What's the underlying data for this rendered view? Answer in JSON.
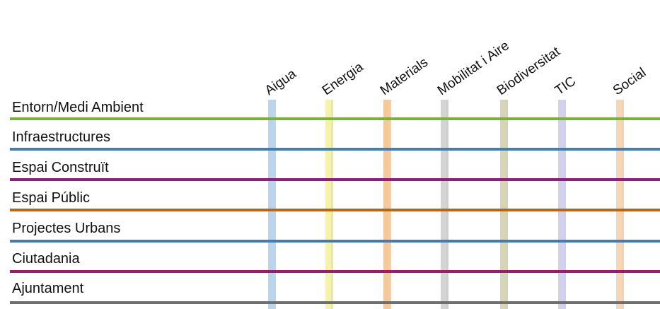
{
  "columns": [
    {
      "label": "Aigua",
      "color": "#b8d4ee",
      "shadow": "#8fb2d4"
    },
    {
      "label": "Energia",
      "color": "#f4f3a8",
      "shadow": "#d4d27e"
    },
    {
      "label": "Materials",
      "color": "#f6c99a",
      "shadow": "#dba874"
    },
    {
      "label": "Mobilitat i Aire",
      "color": "#d4d4d4",
      "shadow": "#a8a8a8"
    },
    {
      "label": "Biodiversitat",
      "color": "#d6d6b4",
      "shadow": "#adad88"
    },
    {
      "label": "TIC",
      "color": "#d2d2ef",
      "shadow": "#a9a9d2"
    },
    {
      "label": "Social",
      "color": "#f8d6b4",
      "shadow": "#dcb28a"
    }
  ],
  "rows": [
    {
      "label": "Entorn/Medi Ambient",
      "color": "#7ab03e"
    },
    {
      "label": "Infraestructures",
      "color": "#3f7fb3"
    },
    {
      "label": "Espai Construït",
      "color": "#8a1f7c"
    },
    {
      "label": "Espai Públic",
      "color": "#b0681e"
    },
    {
      "label": "Projectes Urbans",
      "color": "#4d79a8"
    },
    {
      "label": "Ciutadania",
      "color": "#9a1e6e"
    },
    {
      "label": "Ajuntament",
      "color": "#6f6f6f"
    }
  ]
}
